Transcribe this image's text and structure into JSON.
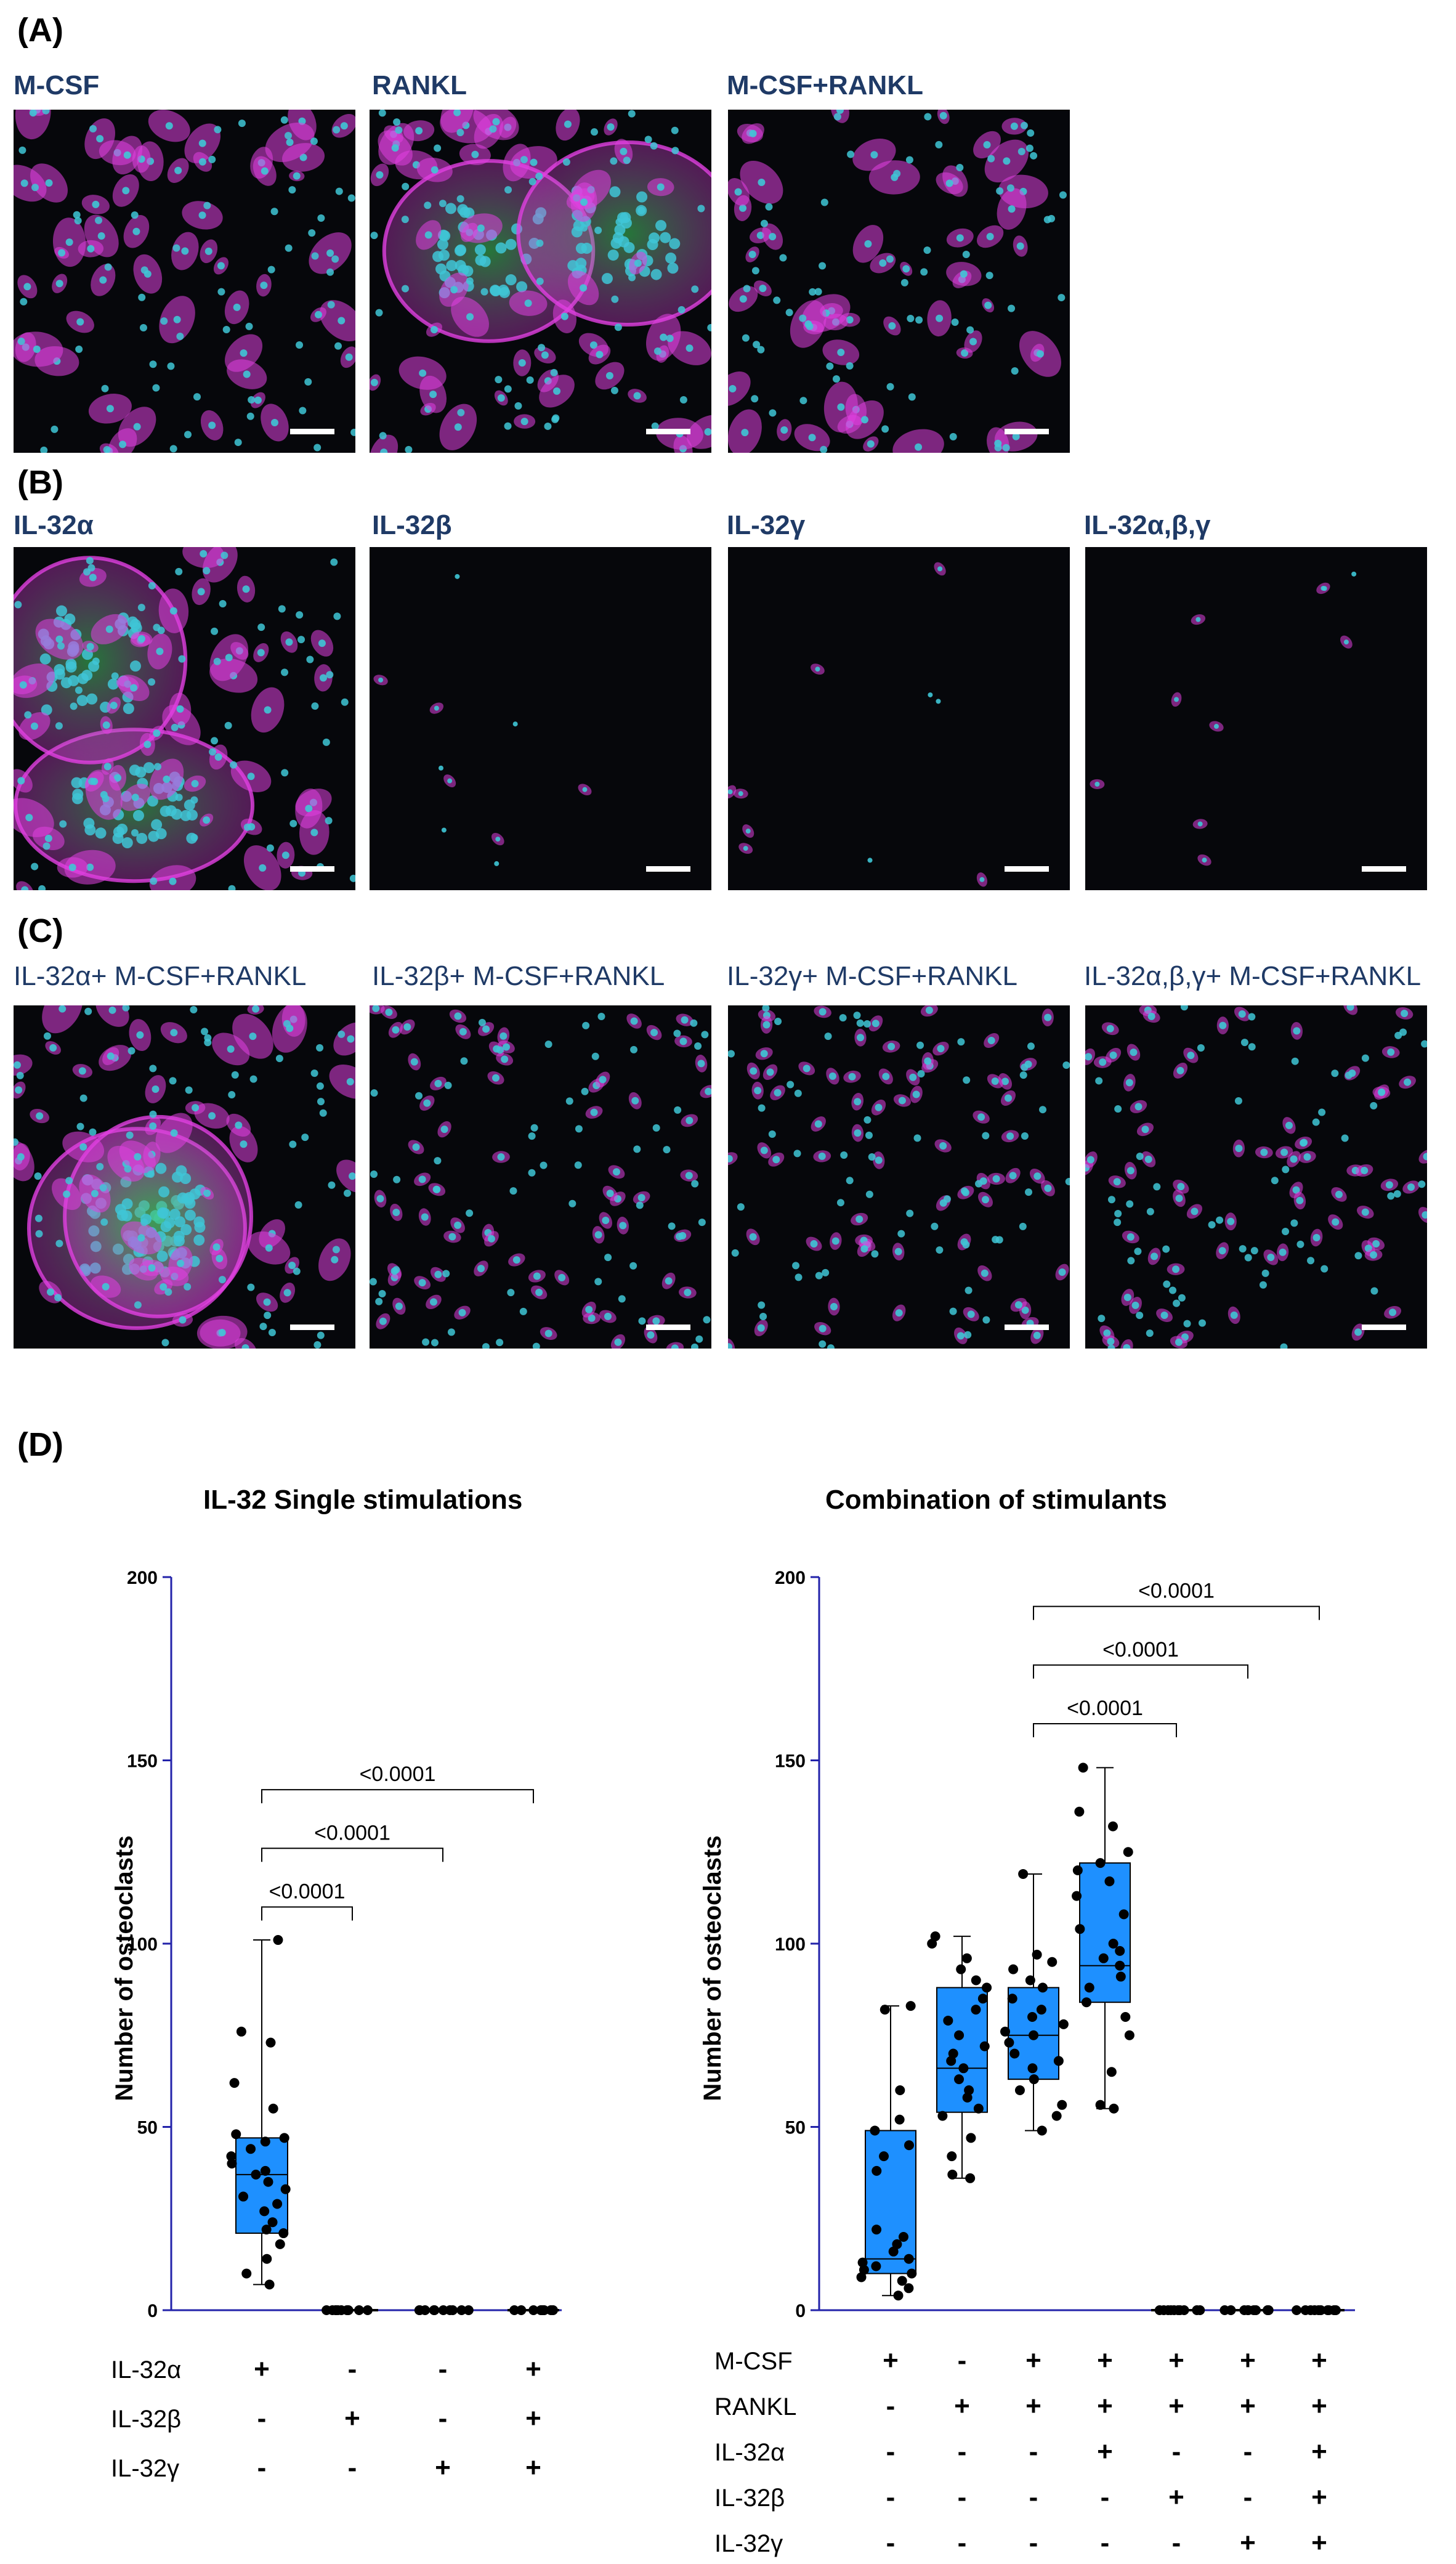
{
  "sections": {
    "a": "(A)",
    "b": "(B)",
    "c": "(C)",
    "d": "(D)"
  },
  "panels_a": [
    "M-CSF",
    "RANKL",
    "M-CSF+RANKL"
  ],
  "panels_b": [
    "IL-32α",
    "IL-32β",
    "IL-32γ",
    "IL-32α,β,γ"
  ],
  "panels_c": [
    "IL-32α+ M-CSF+RANKL",
    "IL-32β+ M-CSF+RANKL",
    "IL-32γ+ M-CSF+RANKL",
    "IL-32α,β,γ+ M-CSF+RANKL"
  ],
  "colors": {
    "box_fill": "#1e90ff",
    "axis": "#2222aa",
    "point": "#000000",
    "nuclei": "#3fc6d6",
    "actin": "#e040e0",
    "trap": "#3fd060",
    "title_text": "#1f3a66"
  },
  "chart_data": [
    {
      "type": "box",
      "title": "IL-32 Single stimulations",
      "ylabel": "Number of osteoclasts",
      "ylim": [
        0,
        200
      ],
      "yticks": [
        "0",
        "50",
        "100",
        "150",
        "200"
      ],
      "row_labels": [
        "IL-32α",
        "IL-32β",
        "IL-32γ"
      ],
      "conditions": [
        [
          "+",
          "-",
          "-"
        ],
        [
          "-",
          "+",
          "-"
        ],
        [
          "-",
          "-",
          "+"
        ],
        [
          "+",
          "+",
          "+"
        ]
      ],
      "groups": [
        {
          "min": 7,
          "q1": 21,
          "median": 37,
          "q3": 47,
          "max": 101,
          "points": [
            7,
            10,
            14,
            18,
            21,
            22,
            24,
            27,
            29,
            31,
            33,
            35,
            37,
            38,
            40,
            42,
            44,
            46,
            47,
            48,
            55,
            62,
            73,
            76,
            101
          ]
        },
        {
          "min": 0,
          "q1": 0,
          "median": 0,
          "q3": 0,
          "max": 0,
          "points": [
            0,
            0,
            0,
            0,
            0,
            0,
            0,
            0,
            0,
            0
          ]
        },
        {
          "min": 0,
          "q1": 0,
          "median": 0,
          "q3": 0,
          "max": 0,
          "points": [
            0,
            0,
            0,
            0,
            0,
            0,
            0,
            0,
            0,
            0
          ]
        },
        {
          "min": 0,
          "q1": 0,
          "median": 0,
          "q3": 0,
          "max": 0,
          "points": [
            0,
            0,
            0,
            0,
            0,
            0,
            0,
            0,
            0,
            0
          ]
        }
      ],
      "comparisons": [
        {
          "from": 0,
          "to": 1,
          "y": 110,
          "label": "<0.0001"
        },
        {
          "from": 0,
          "to": 2,
          "y": 126,
          "label": "<0.0001"
        },
        {
          "from": 0,
          "to": 3,
          "y": 142,
          "label": "<0.0001"
        }
      ]
    },
    {
      "type": "box",
      "title": "Combination of stimulants",
      "ylabel": "Number of osteoclasts",
      "ylim": [
        0,
        200
      ],
      "yticks": [
        "0",
        "50",
        "100",
        "150",
        "200"
      ],
      "row_labels": [
        "M-CSF",
        "RANKL",
        "IL-32α",
        "IL-32β",
        "IL-32γ"
      ],
      "conditions": [
        [
          "+",
          "-",
          "-",
          "-",
          "-"
        ],
        [
          "-",
          "+",
          "-",
          "-",
          "-"
        ],
        [
          "+",
          "+",
          "-",
          "-",
          "-"
        ],
        [
          "+",
          "+",
          "+",
          "-",
          "-"
        ],
        [
          "+",
          "+",
          "-",
          "+",
          "-"
        ],
        [
          "+",
          "+",
          "-",
          "-",
          "+"
        ],
        [
          "+",
          "+",
          "+",
          "+",
          "+"
        ]
      ],
      "groups": [
        {
          "min": 4,
          "q1": 10,
          "median": 14,
          "q3": 49,
          "max": 83,
          "points": [
            4,
            6,
            8,
            9,
            10,
            11,
            12,
            13,
            14,
            16,
            18,
            20,
            22,
            38,
            42,
            45,
            49,
            52,
            60,
            82,
            83
          ]
        },
        {
          "min": 36,
          "q1": 54,
          "median": 66,
          "q3": 88,
          "max": 102,
          "points": [
            36,
            37,
            42,
            47,
            53,
            55,
            58,
            60,
            63,
            66,
            68,
            70,
            72,
            75,
            79,
            82,
            85,
            88,
            90,
            93,
            96,
            100,
            102
          ]
        },
        {
          "min": 49,
          "q1": 63,
          "median": 75,
          "q3": 88,
          "max": 119,
          "points": [
            49,
            53,
            56,
            60,
            63,
            66,
            68,
            70,
            73,
            75,
            76,
            78,
            80,
            82,
            85,
            88,
            90,
            93,
            95,
            97,
            119
          ]
        },
        {
          "min": 55,
          "q1": 84,
          "median": 94,
          "q3": 122,
          "max": 148,
          "points": [
            55,
            56,
            65,
            75,
            80,
            84,
            88,
            91,
            94,
            96,
            98,
            100,
            104,
            108,
            113,
            117,
            120,
            122,
            125,
            132,
            136,
            148
          ]
        },
        {
          "min": 0,
          "q1": 0,
          "median": 0,
          "q3": 0,
          "max": 0,
          "points": [
            0,
            0,
            0,
            0,
            0,
            0,
            0,
            0,
            0,
            0
          ]
        },
        {
          "min": 0,
          "q1": 0,
          "median": 0,
          "q3": 0,
          "max": 0,
          "points": [
            0,
            0,
            0,
            0,
            0,
            0,
            0,
            0,
            0,
            0
          ]
        },
        {
          "min": 0,
          "q1": 0,
          "median": 0,
          "q3": 0,
          "max": 0,
          "points": [
            0,
            0,
            0,
            0,
            0,
            0,
            0,
            0,
            0,
            0
          ]
        }
      ],
      "comparisons": [
        {
          "from": 2,
          "to": 4,
          "y": 160,
          "label": "<0.0001"
        },
        {
          "from": 2,
          "to": 5,
          "y": 176,
          "label": "<0.0001"
        },
        {
          "from": 2,
          "to": 6,
          "y": 192,
          "label": "<0.0001"
        }
      ]
    }
  ]
}
